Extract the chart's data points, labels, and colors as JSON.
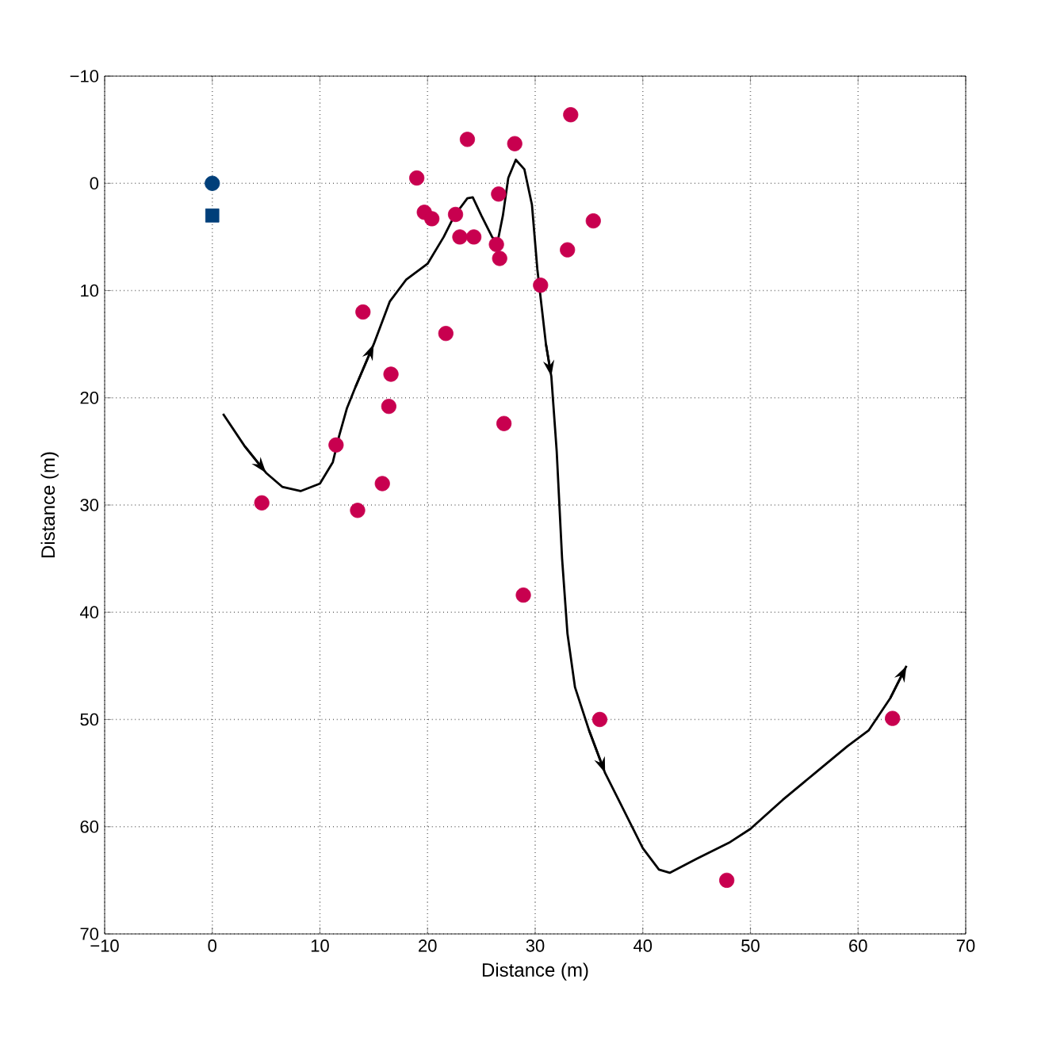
{
  "chart_data": {
    "type": "scatter",
    "xlabel": "Distance (m)",
    "ylabel": "Distance (m)",
    "xlim": [
      -10,
      70
    ],
    "ylim": [
      70,
      -10
    ],
    "xticks": [
      {
        "value": -10,
        "label": "−10"
      },
      0,
      10,
      20,
      30,
      40,
      50,
      60,
      70
    ],
    "yticks": [
      {
        "value": -10,
        "label": "−10"
      },
      0,
      10,
      20,
      30,
      40,
      50,
      60,
      70
    ],
    "grid": true,
    "series": [
      {
        "type": "line",
        "color": "#000000",
        "marker": "none",
        "line_style": "solid",
        "x": [
          1.0,
          3.0,
          5.0,
          6.5,
          8.2,
          10.0,
          11.2,
          11.8,
          12.5,
          13.3,
          15.0,
          16.5,
          18.0,
          20.0,
          21.5,
          22.5,
          23.7,
          24.2,
          25.0,
          26.0,
          26.5,
          27.0,
          27.5,
          28.2,
          29.0,
          29.7,
          30.2,
          31.0,
          31.5,
          32.0,
          32.5,
          33.0,
          33.7,
          35.0,
          36.5,
          38.0,
          40.0,
          41.5,
          42.5,
          45.0,
          48.0,
          50.0,
          53.0,
          56.0,
          59.0,
          61.0,
          63.0,
          64.5
        ],
        "values": [
          21.5,
          24.5,
          27.0,
          28.3,
          28.7,
          28.0,
          26.0,
          23.5,
          21.0,
          19.0,
          15.0,
          11.0,
          9.0,
          7.5,
          5.0,
          3.0,
          1.4,
          1.3,
          3.0,
          5.0,
          5.5,
          3.0,
          -0.5,
          -2.2,
          -1.3,
          2.0,
          8.0,
          15.0,
          18.0,
          25.0,
          35.0,
          42.0,
          47.0,
          51.0,
          55.0,
          58.0,
          62.0,
          64.0,
          64.3,
          63.0,
          61.5,
          60.2,
          57.5,
          55.0,
          52.5,
          51.0,
          48.0,
          45.0
        ]
      },
      {
        "color": "#c8004f",
        "marker": "circle",
        "x": [
          33.3,
          23.7,
          28.1,
          19.0,
          26.6,
          19.7,
          20.4,
          22.6,
          35.4,
          23.0,
          24.3,
          26.4,
          26.7,
          33.0,
          30.5,
          14.0,
          21.7,
          16.6,
          16.4,
          27.1,
          11.5,
          15.8,
          4.6,
          13.5,
          28.9,
          36.0,
          63.2,
          47.8
        ],
        "values": [
          -6.4,
          -4.1,
          -3.7,
          -0.5,
          1.0,
          2.7,
          3.3,
          2.9,
          3.5,
          5.0,
          5.0,
          5.7,
          7.0,
          6.2,
          9.5,
          12.0,
          14.0,
          17.8,
          20.8,
          22.4,
          24.4,
          28.0,
          29.8,
          30.5,
          38.4,
          50.0,
          49.9,
          65.0
        ]
      },
      {
        "color": "#003f7a",
        "marker": "circle",
        "x": [
          0
        ],
        "values": [
          0
        ]
      },
      {
        "color": "#003f7a",
        "marker": "square",
        "x": [
          0
        ],
        "values": [
          3
        ]
      }
    ]
  }
}
